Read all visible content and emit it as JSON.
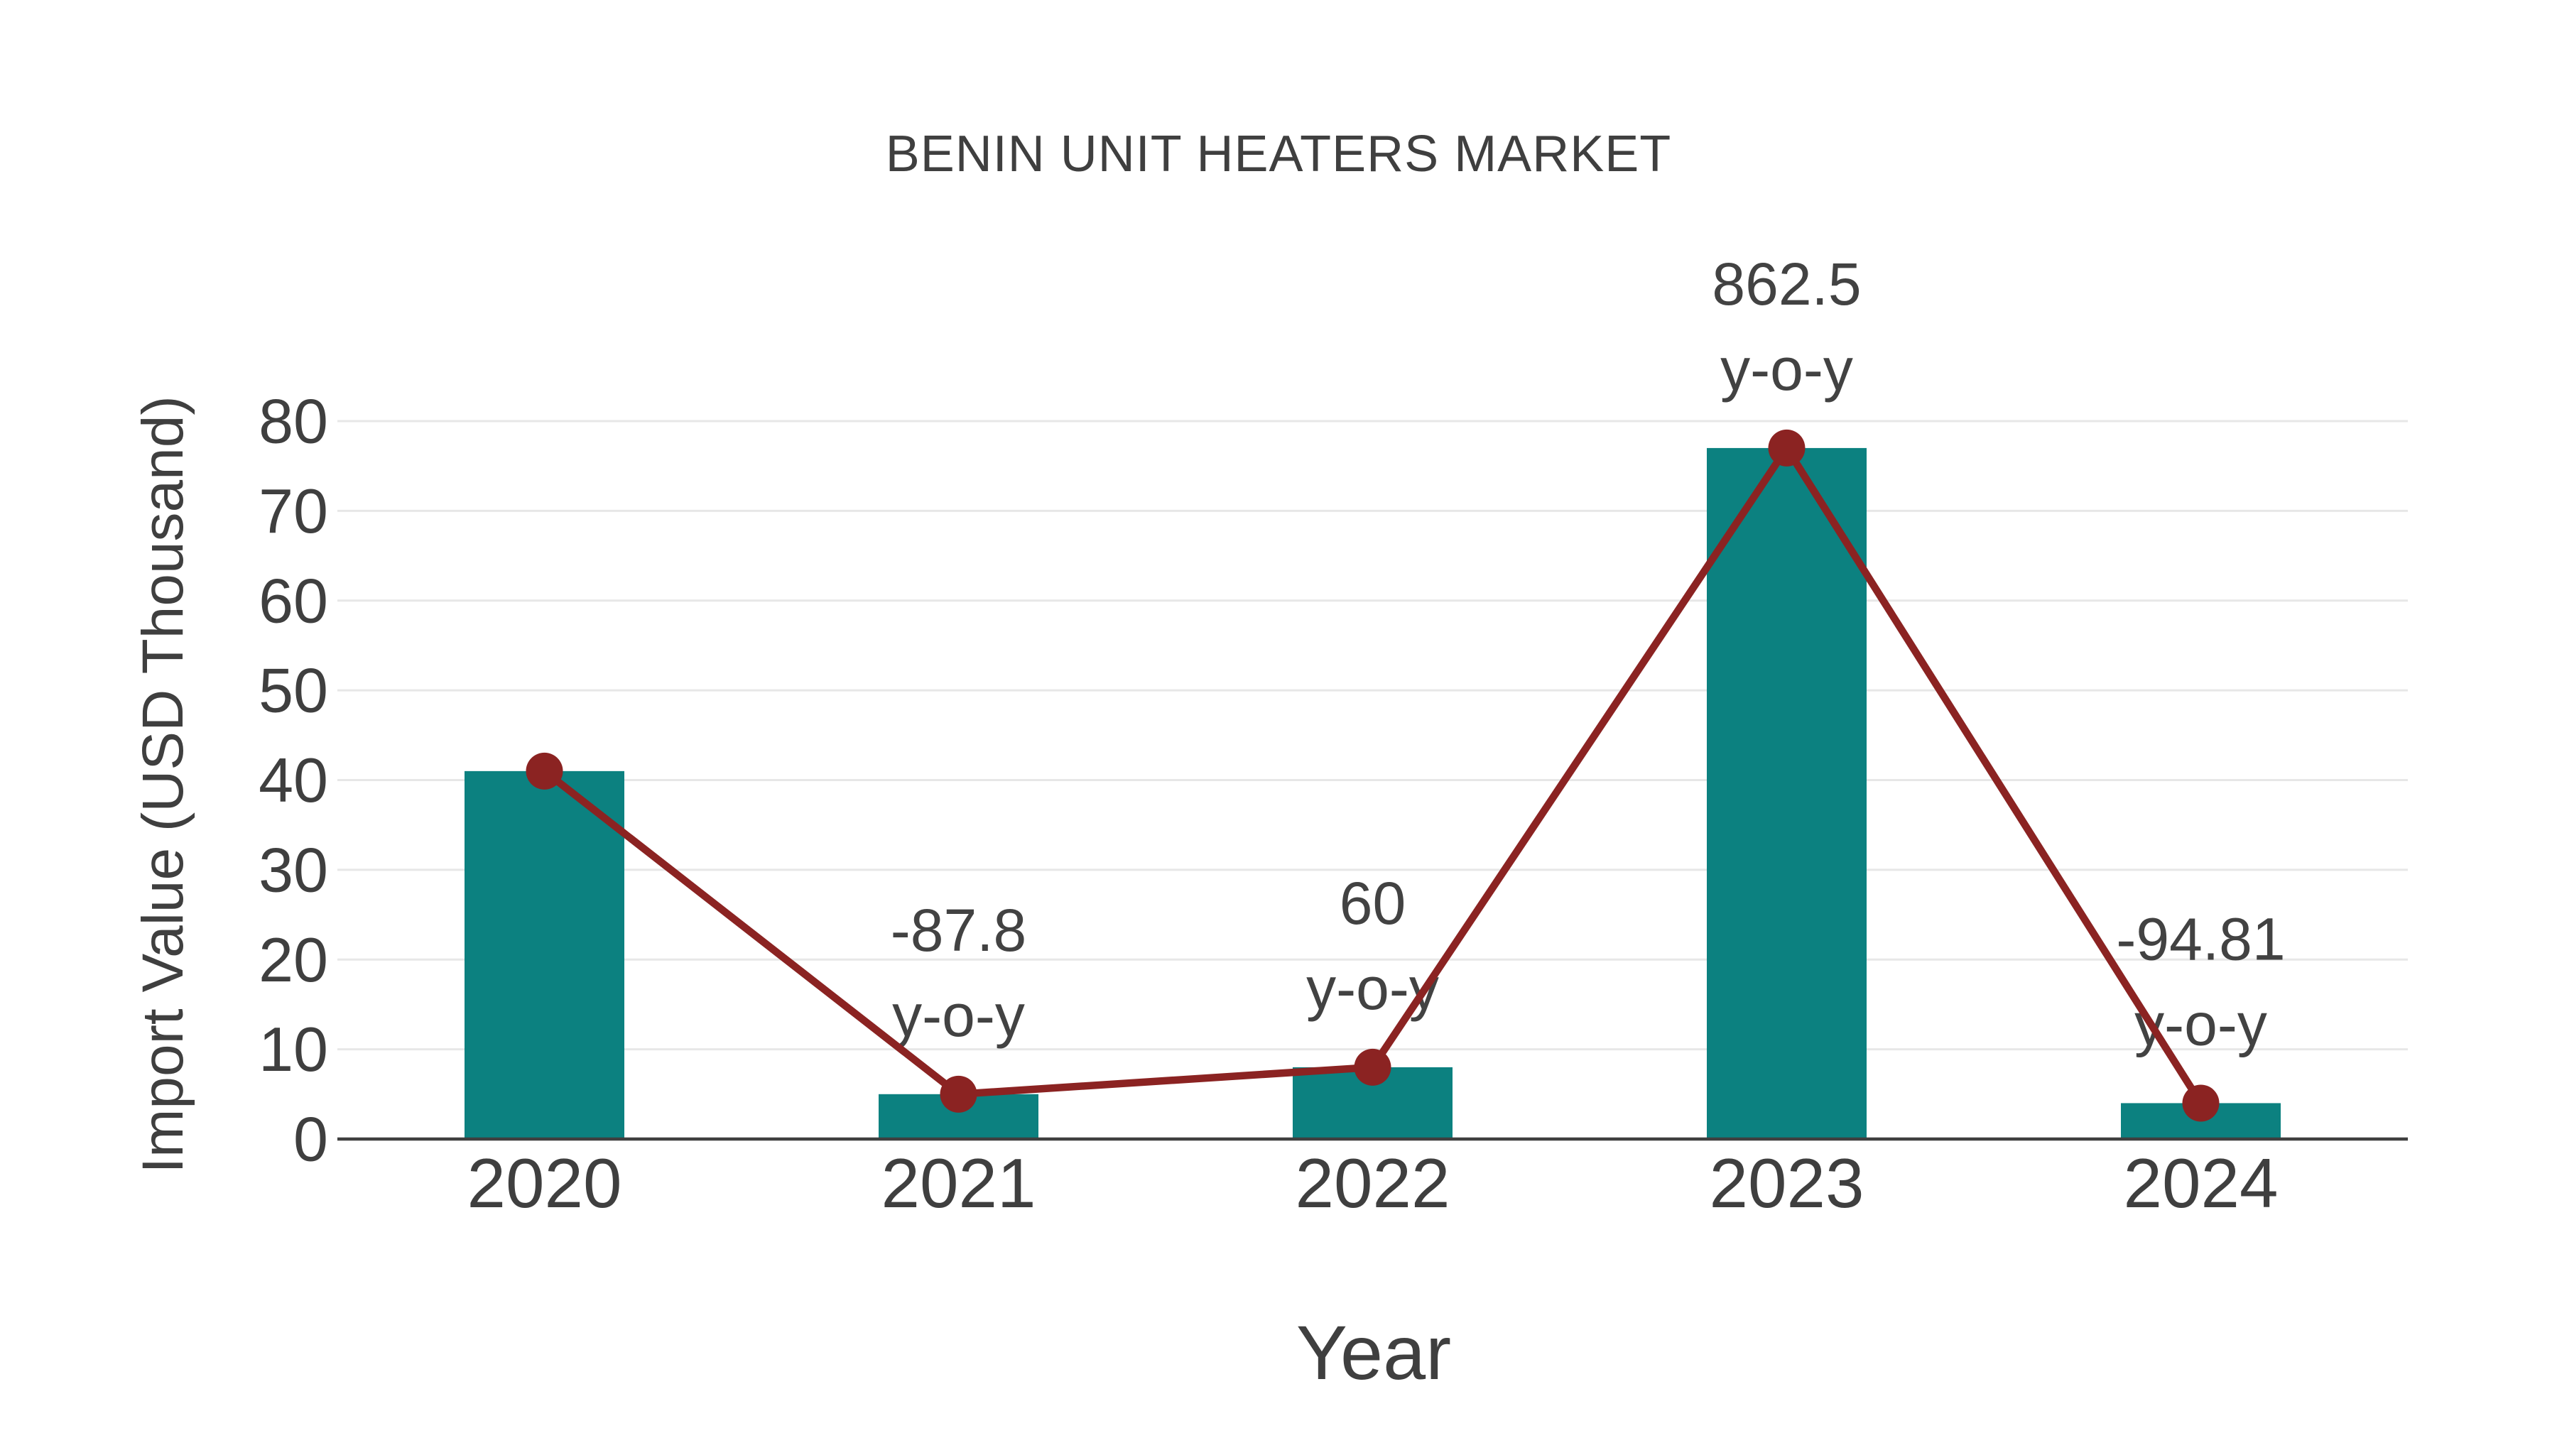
{
  "title": "BENIN UNIT HEATERS MARKET",
  "chart_data": {
    "type": "bar",
    "title": "BENIN UNIT HEATERS MARKET",
    "xlabel": "Year",
    "ylabel": "Import Value (USD Thousand)",
    "categories": [
      "2020",
      "2021",
      "2022",
      "2023",
      "2024"
    ],
    "series": [
      {
        "name": "Import Value bars",
        "type": "bar",
        "values": [
          41,
          5,
          8,
          77,
          4
        ]
      },
      {
        "name": "Import Value trend line",
        "type": "line",
        "values": [
          41,
          5,
          8,
          77,
          4
        ]
      }
    ],
    "annotations": [
      {
        "category": "2021",
        "value": "-87.8",
        "label": "y-o-y"
      },
      {
        "category": "2022",
        "value": "60",
        "label": "y-o-y"
      },
      {
        "category": "2023",
        "value": "862.5",
        "label": "y-o-y"
      },
      {
        "category": "2024",
        "value": "-94.81",
        "label": "y-o-y"
      }
    ],
    "ylim": [
      0,
      80
    ],
    "yticks": [
      0,
      10,
      20,
      30,
      40,
      50,
      60,
      70,
      80
    ],
    "grid": true,
    "legend": "none",
    "colors": {
      "bar": "#0c8180",
      "line": "#8b2322",
      "marker": "#8b2322",
      "gridline": "#e7e7e7",
      "axis": "#3f3f3f",
      "text": "#3f3f3f"
    }
  }
}
